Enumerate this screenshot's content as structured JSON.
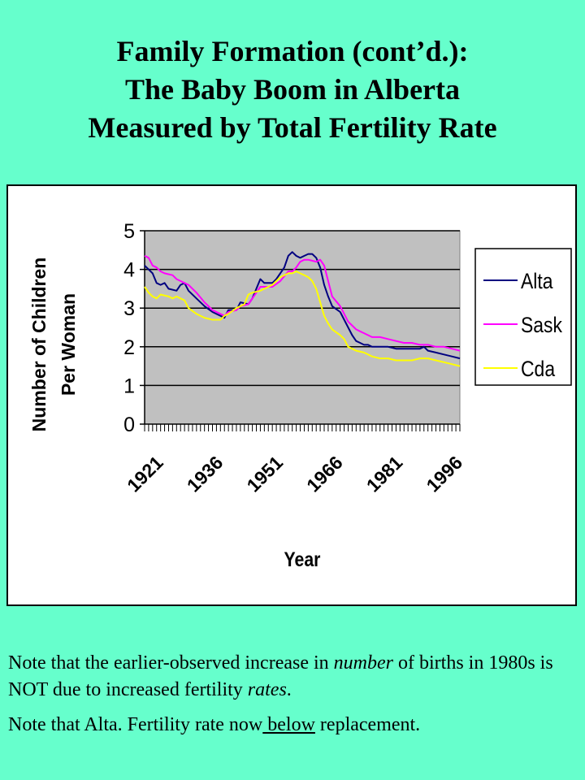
{
  "slide": {
    "title_lines": [
      "Family Formation (cont’d.):",
      "The Baby Boom in Alberta",
      "Measured by Total Fertility Rate"
    ],
    "background_color": "#66ffcc"
  },
  "notes": {
    "note1_a": "Note that the earlier-observed increase in ",
    "note1_em1": "number",
    "note1_b": " of births in 1980s is NOT due to increased fertility ",
    "note1_em2": "rates",
    "note1_c": ".",
    "note2_a": "Note that Alta. Fertility rate now",
    "note2_u": " below",
    "note2_b": " replacement."
  },
  "chart_data": {
    "type": "line",
    "xlabel": "Year",
    "ylabel_lines": [
      "Number of Children",
      "Per Woman"
    ],
    "x_tick_labels": [
      "1921",
      "1936",
      "1951",
      "1966",
      "1981",
      "1996"
    ],
    "x_range": [
      1921,
      2000
    ],
    "ylim": [
      0,
      5
    ],
    "y_ticks": [
      0,
      1,
      2,
      3,
      4,
      5
    ],
    "grid": true,
    "plot_background": "#c0c0c0",
    "legend_position": "right",
    "series": [
      {
        "name": "Alta",
        "color": "#000080",
        "points": [
          [
            1921,
            4.1
          ],
          [
            1923,
            3.9
          ],
          [
            1924,
            3.65
          ],
          [
            1925,
            3.6
          ],
          [
            1926,
            3.65
          ],
          [
            1927,
            3.5
          ],
          [
            1929,
            3.45
          ],
          [
            1930,
            3.6
          ],
          [
            1931,
            3.65
          ],
          [
            1932,
            3.45
          ],
          [
            1934,
            3.25
          ],
          [
            1936,
            3.05
          ],
          [
            1938,
            2.9
          ],
          [
            1940,
            2.8
          ],
          [
            1941,
            2.75
          ],
          [
            1942,
            2.95
          ],
          [
            1944,
            2.95
          ],
          [
            1945,
            3.15
          ],
          [
            1947,
            3.1
          ],
          [
            1948,
            3.25
          ],
          [
            1950,
            3.75
          ],
          [
            1951,
            3.65
          ],
          [
            1953,
            3.65
          ],
          [
            1954,
            3.75
          ],
          [
            1956,
            4.05
          ],
          [
            1957,
            4.35
          ],
          [
            1958,
            4.45
          ],
          [
            1959,
            4.35
          ],
          [
            1960,
            4.3
          ],
          [
            1961,
            4.35
          ],
          [
            1962,
            4.4
          ],
          [
            1963,
            4.4
          ],
          [
            1964,
            4.3
          ],
          [
            1965,
            4.05
          ],
          [
            1966,
            3.6
          ],
          [
            1967,
            3.3
          ],
          [
            1968,
            3.05
          ],
          [
            1970,
            2.9
          ],
          [
            1971,
            2.7
          ],
          [
            1972,
            2.5
          ],
          [
            1973,
            2.3
          ],
          [
            1974,
            2.15
          ],
          [
            1975,
            2.1
          ],
          [
            1976,
            2.05
          ],
          [
            1977,
            2.05
          ],
          [
            1978,
            2.0
          ],
          [
            1980,
            2.0
          ],
          [
            1982,
            2.0
          ],
          [
            1984,
            1.95
          ],
          [
            1986,
            1.95
          ],
          [
            1988,
            1.95
          ],
          [
            1990,
            1.95
          ],
          [
            1991,
            2.0
          ],
          [
            1992,
            1.9
          ],
          [
            1994,
            1.85
          ],
          [
            1996,
            1.8
          ],
          [
            1998,
            1.75
          ],
          [
            2000,
            1.7
          ]
        ]
      },
      {
        "name": "Sask",
        "color": "#ff00ff",
        "points": [
          [
            1921,
            4.35
          ],
          [
            1922,
            4.3
          ],
          [
            1923,
            4.1
          ],
          [
            1924,
            4.05
          ],
          [
            1925,
            3.95
          ],
          [
            1926,
            3.9
          ],
          [
            1928,
            3.85
          ],
          [
            1929,
            3.75
          ],
          [
            1930,
            3.7
          ],
          [
            1931,
            3.65
          ],
          [
            1932,
            3.6
          ],
          [
            1934,
            3.4
          ],
          [
            1936,
            3.15
          ],
          [
            1938,
            2.95
          ],
          [
            1940,
            2.85
          ],
          [
            1941,
            2.8
          ],
          [
            1942,
            2.9
          ],
          [
            1944,
            2.95
          ],
          [
            1945,
            3.05
          ],
          [
            1947,
            3.1
          ],
          [
            1948,
            3.25
          ],
          [
            1950,
            3.55
          ],
          [
            1951,
            3.55
          ],
          [
            1953,
            3.55
          ],
          [
            1955,
            3.7
          ],
          [
            1957,
            3.95
          ],
          [
            1958,
            3.95
          ],
          [
            1959,
            4.05
          ],
          [
            1960,
            4.2
          ],
          [
            1961,
            4.25
          ],
          [
            1962,
            4.25
          ],
          [
            1964,
            4.2
          ],
          [
            1965,
            4.25
          ],
          [
            1966,
            4.1
          ],
          [
            1967,
            3.7
          ],
          [
            1968,
            3.3
          ],
          [
            1970,
            3.05
          ],
          [
            1971,
            2.85
          ],
          [
            1972,
            2.65
          ],
          [
            1973,
            2.55
          ],
          [
            1974,
            2.45
          ],
          [
            1975,
            2.4
          ],
          [
            1976,
            2.35
          ],
          [
            1977,
            2.3
          ],
          [
            1978,
            2.25
          ],
          [
            1980,
            2.25
          ],
          [
            1982,
            2.2
          ],
          [
            1984,
            2.15
          ],
          [
            1986,
            2.1
          ],
          [
            1988,
            2.1
          ],
          [
            1990,
            2.05
          ],
          [
            1992,
            2.05
          ],
          [
            1994,
            2.0
          ],
          [
            1996,
            2.0
          ],
          [
            1998,
            1.95
          ],
          [
            2000,
            1.9
          ]
        ]
      },
      {
        "name": "Cda",
        "color": "#ffff00",
        "points": [
          [
            1921,
            3.55
          ],
          [
            1922,
            3.4
          ],
          [
            1923,
            3.3
          ],
          [
            1924,
            3.25
          ],
          [
            1925,
            3.35
          ],
          [
            1927,
            3.3
          ],
          [
            1928,
            3.25
          ],
          [
            1929,
            3.3
          ],
          [
            1930,
            3.25
          ],
          [
            1931,
            3.2
          ],
          [
            1932,
            3.0
          ],
          [
            1934,
            2.85
          ],
          [
            1936,
            2.75
          ],
          [
            1938,
            2.7
          ],
          [
            1940,
            2.7
          ],
          [
            1941,
            2.8
          ],
          [
            1942,
            2.85
          ],
          [
            1944,
            3.0
          ],
          [
            1946,
            3.1
          ],
          [
            1947,
            3.35
          ],
          [
            1948,
            3.4
          ],
          [
            1950,
            3.45
          ],
          [
            1951,
            3.5
          ],
          [
            1953,
            3.6
          ],
          [
            1955,
            3.8
          ],
          [
            1957,
            3.9
          ],
          [
            1958,
            3.9
          ],
          [
            1959,
            3.95
          ],
          [
            1960,
            3.9
          ],
          [
            1961,
            3.85
          ],
          [
            1962,
            3.8
          ],
          [
            1963,
            3.7
          ],
          [
            1964,
            3.5
          ],
          [
            1965,
            3.15
          ],
          [
            1966,
            2.8
          ],
          [
            1967,
            2.6
          ],
          [
            1968,
            2.45
          ],
          [
            1970,
            2.3
          ],
          [
            1971,
            2.2
          ],
          [
            1972,
            2.0
          ],
          [
            1974,
            1.9
          ],
          [
            1976,
            1.85
          ],
          [
            1978,
            1.75
          ],
          [
            1980,
            1.7
          ],
          [
            1982,
            1.7
          ],
          [
            1984,
            1.65
          ],
          [
            1986,
            1.65
          ],
          [
            1988,
            1.65
          ],
          [
            1990,
            1.7
          ],
          [
            1991,
            1.7
          ],
          [
            1992,
            1.7
          ],
          [
            1994,
            1.65
          ],
          [
            1996,
            1.6
          ],
          [
            1998,
            1.55
          ],
          [
            2000,
            1.5
          ]
        ]
      }
    ]
  }
}
